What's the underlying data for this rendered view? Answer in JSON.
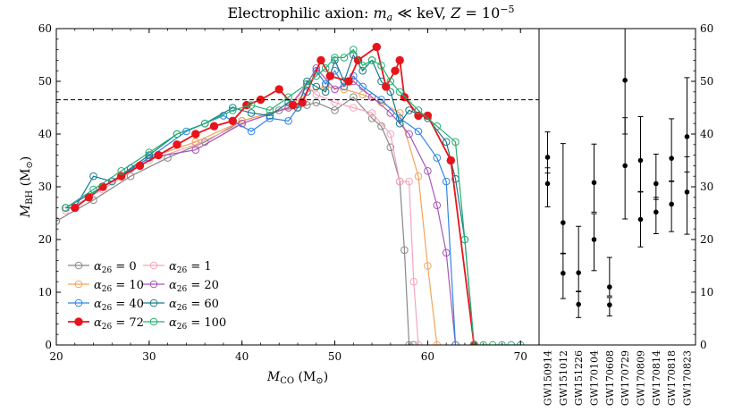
{
  "chart_data": [
    {
      "type": "line",
      "title": "Electrophilic axion: m_a ≪ keV, Z = 10^−5",
      "xlabel": "M_CO (M⊙)",
      "ylabel": "M_BH (M⊙)",
      "xlim": [
        20,
        72
      ],
      "ylim": [
        0,
        60
      ],
      "xticks": [
        "20",
        "30",
        "40",
        "50",
        "60",
        "70"
      ],
      "yticks": [
        "0",
        "10",
        "20",
        "30",
        "40",
        "50",
        "60"
      ],
      "legend_position": "lower-left",
      "reference_line": {
        "y": 46.5,
        "style": "dashed"
      },
      "series": [
        {
          "name": "α26 = 0",
          "color": "#888888",
          "x": [
            20,
            24,
            28,
            32,
            36,
            40,
            44,
            46,
            47,
            48,
            50,
            52,
            54,
            55,
            56,
            57,
            57.5,
            58,
            58.5
          ],
          "y": [
            23.5,
            27.5,
            32,
            35.5,
            38.5,
            42.5,
            44.5,
            45,
            45.5,
            46,
            44.5,
            47,
            43,
            41.5,
            37.5,
            31,
            18,
            0,
            0
          ]
        },
        {
          "name": "α26 = 1",
          "color": "#f4a7b9",
          "x": [
            21,
            25,
            30,
            35,
            40,
            45,
            47,
            48,
            50,
            52,
            54,
            56,
            57,
            58,
            58.5,
            59
          ],
          "y": [
            25.5,
            29.5,
            35,
            38,
            42,
            45,
            49,
            47.5,
            46,
            45,
            44,
            40,
            31,
            31,
            12,
            0
          ]
        },
        {
          "name": "α26 = 10",
          "color": "#f5a35a",
          "x": [
            21,
            25,
            30,
            35,
            40,
            45,
            47,
            49,
            51,
            53,
            55,
            57,
            59,
            60,
            61
          ],
          "y": [
            26,
            30,
            35.5,
            38.5,
            42.5,
            45,
            48,
            49,
            48.5,
            47.5,
            46,
            44,
            32,
            15,
            0
          ]
        },
        {
          "name": "α26 = 20",
          "color": "#a855b5",
          "x": [
            21,
            25,
            30,
            35,
            40,
            45,
            47,
            48,
            50,
            52,
            54,
            56,
            58,
            60,
            61,
            62,
            63
          ],
          "y": [
            26,
            30,
            35.5,
            37,
            42,
            45,
            49.5,
            52.5,
            48.5,
            50,
            47,
            44,
            40,
            33,
            26.5,
            17.5,
            0
          ]
        },
        {
          "name": "α26 = 40",
          "color": "#2f86e6",
          "x": [
            21,
            25,
            30,
            34,
            38,
            41,
            43,
            45,
            46,
            47,
            48,
            49,
            50,
            51,
            52,
            53,
            55,
            57,
            59,
            61,
            62,
            63
          ],
          "y": [
            26,
            30,
            35.5,
            40.5,
            43.5,
            40.5,
            43,
            42.5,
            45,
            48,
            52,
            49.5,
            52,
            49,
            51,
            49,
            46.5,
            43,
            40.5,
            35.5,
            31,
            0
          ]
        },
        {
          "name": "α26 = 60",
          "color": "#1b7a8c",
          "x": [
            21,
            22,
            24,
            26,
            28,
            30,
            33,
            36,
            39,
            41,
            43,
            45,
            46,
            47,
            48,
            49,
            50,
            51,
            52,
            53,
            54,
            55,
            56,
            57,
            58,
            60,
            62,
            63,
            64,
            65
          ],
          "y": [
            26,
            26,
            32,
            31,
            33.5,
            36,
            40,
            42,
            45,
            44,
            43.5,
            46,
            45,
            50,
            49,
            48,
            54,
            50,
            55,
            52,
            54,
            50,
            48,
            42,
            44.5,
            43,
            38.5,
            31.5,
            20,
            0
          ]
        },
        {
          "name": "α26 = 72",
          "color": "#e8141b",
          "x": [
            22,
            23.5,
            25,
            27,
            29,
            31,
            33,
            35,
            37,
            39,
            40.5,
            42,
            44,
            45.5,
            46.5,
            48.5,
            49.5,
            51.5,
            52.5,
            54.5,
            55.5,
            56.5,
            57,
            57.5,
            59,
            60,
            62.5,
            65
          ],
          "y": [
            26,
            28,
            30,
            32,
            34,
            36,
            38,
            40,
            41.5,
            42.5,
            45.5,
            46.5,
            48.5,
            45.5,
            46,
            54,
            51,
            50,
            54,
            56.5,
            49,
            52,
            54,
            47,
            43.5,
            43.5,
            35,
            0
          ]
        },
        {
          "name": "α26 = 100",
          "color": "#22b070",
          "x": [
            21,
            24,
            27,
            30,
            33,
            36,
            39,
            41,
            43,
            45,
            47,
            48,
            49,
            50,
            51,
            52,
            53,
            54,
            55,
            56,
            57,
            59,
            61,
            63,
            64,
            65,
            66,
            67,
            68,
            69,
            70
          ],
          "y": [
            26,
            29.5,
            33,
            36.5,
            40,
            42,
            44.5,
            45.5,
            44.5,
            47,
            49.5,
            51,
            52.5,
            54.5,
            54.5,
            56,
            53,
            54,
            53,
            50,
            48,
            44.5,
            41.5,
            38.5,
            20,
            0,
            0,
            0,
            0,
            0,
            0
          ]
        }
      ]
    },
    {
      "type": "scatter",
      "title": "",
      "ylim": [
        0,
        60
      ],
      "yticks": [
        "0",
        "10",
        "20",
        "30",
        "40",
        "50",
        "60"
      ],
      "categories": [
        "GW150914",
        "GW151012",
        "GW151226",
        "GW170104",
        "GW170608",
        "GW170729",
        "GW170809",
        "GW170814",
        "GW170818",
        "GW170823"
      ],
      "primary_mass": [
        {
          "value": 35.6,
          "low": 32.6,
          "high": 40.4
        },
        {
          "value": 23.2,
          "low": 17.3,
          "high": 38.2
        },
        {
          "value": 13.7,
          "low": 10.2,
          "high": 22.5
        },
        {
          "value": 30.8,
          "low": 25.2,
          "high": 38.1
        },
        {
          "value": 11.0,
          "low": 9.3,
          "high": 16.6
        },
        {
          "value": 50.2,
          "low": 40.0,
          "high": 66.5
        },
        {
          "value": 35.0,
          "low": 29.1,
          "high": 43.3
        },
        {
          "value": 30.6,
          "low": 27.6,
          "high": 36.2
        },
        {
          "value": 35.4,
          "low": 31.1,
          "high": 42.9
        },
        {
          "value": 39.5,
          "low": 32.8,
          "high": 50.7
        }
      ],
      "secondary_mass": [
        {
          "value": 30.6,
          "low": 26.2,
          "high": 33.6
        },
        {
          "value": 13.6,
          "low": 8.8,
          "high": 17.4
        },
        {
          "value": 7.7,
          "low": 5.2,
          "high": 10.1
        },
        {
          "value": 20.0,
          "low": 14.1,
          "high": 24.9
        },
        {
          "value": 7.6,
          "low": 5.5,
          "high": 9.0
        },
        {
          "value": 34.0,
          "low": 23.9,
          "high": 43.1
        },
        {
          "value": 23.8,
          "low": 18.6,
          "high": 29.0
        },
        {
          "value": 25.2,
          "low": 21.1,
          "high": 28.0
        },
        {
          "value": 26.7,
          "low": 21.5,
          "high": 31.0
        },
        {
          "value": 29.0,
          "low": 21.0,
          "high": 35.7
        }
      ]
    }
  ]
}
